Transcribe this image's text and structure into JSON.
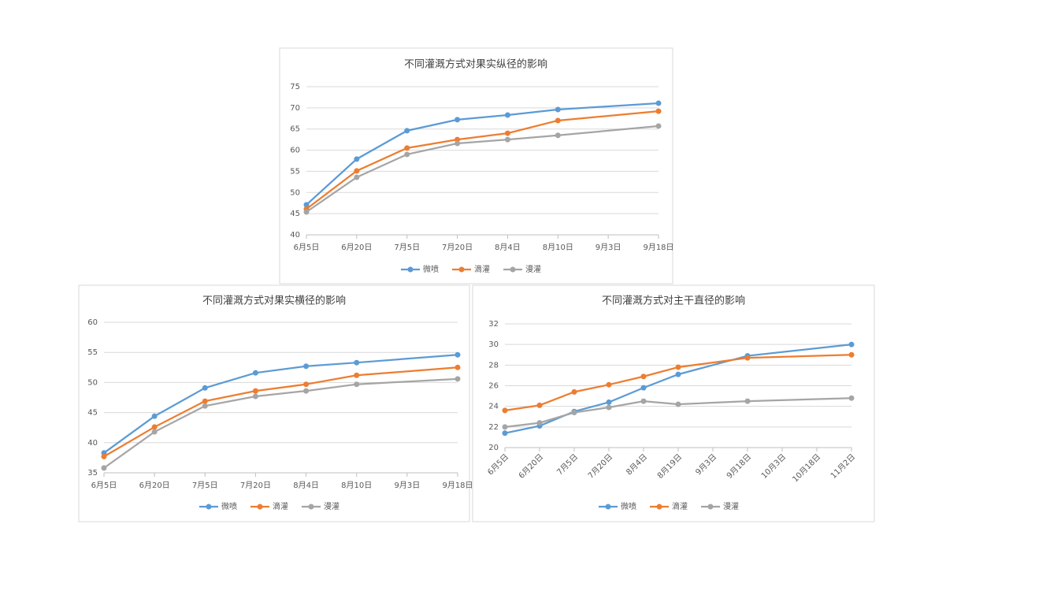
{
  "chart_data": [
    {
      "type": "line",
      "title": "不同灌溉方式对果实纵径的影响",
      "categories": [
        "6月5日",
        "6月20日",
        "7月5日",
        "7月20日",
        "8月4日",
        "8月10日",
        "9月3日",
        "9月18日"
      ],
      "series": [
        {
          "name": "微喷",
          "color": "#5b9bd5",
          "values": [
            47.1,
            57.9,
            64.6,
            67.2,
            68.3,
            69.6,
            null,
            71.1
          ]
        },
        {
          "name": "滴灌",
          "color": "#ed7d31",
          "values": [
            46.1,
            55.1,
            60.5,
            62.5,
            64,
            67,
            null,
            69.2
          ]
        },
        {
          "name": "漫灌",
          "color": "#a5a5a5",
          "values": [
            45.4,
            53.6,
            59,
            61.6,
            62.5,
            63.5,
            null,
            65.7
          ]
        }
      ],
      "ylim": [
        40,
        75
      ],
      "yticks": [
        40,
        45,
        50,
        55,
        60,
        65,
        70,
        75
      ],
      "grid": true,
      "legend": "bottom",
      "connect_gaps": true
    },
    {
      "type": "line",
      "title": "不同灌溉方式对果实横径的影响",
      "categories": [
        "6月5日",
        "6月20日",
        "7月5日",
        "7月20日",
        "8月4日",
        "8月10日",
        "9月3日",
        "9月18日"
      ],
      "series": [
        {
          "name": "微喷",
          "color": "#5b9bd5",
          "values": [
            38.3,
            44.4,
            49.1,
            51.6,
            52.7,
            53.3,
            null,
            54.6
          ]
        },
        {
          "name": "滴灌",
          "color": "#ed7d31",
          "values": [
            37.7,
            42.6,
            46.9,
            48.6,
            49.7,
            51.2,
            null,
            52.5
          ]
        },
        {
          "name": "漫灌",
          "color": "#a5a5a5",
          "values": [
            35.8,
            41.8,
            46.1,
            47.7,
            48.6,
            49.7,
            null,
            50.6
          ]
        }
      ],
      "ylim": [
        35,
        60
      ],
      "yticks": [
        35,
        40,
        45,
        50,
        55,
        60
      ],
      "grid": true,
      "legend": "bottom",
      "connect_gaps": true
    },
    {
      "type": "line",
      "title": "不同灌溉方式对主干直径的影响",
      "categories": [
        "6月5日",
        "6月20日",
        "7月5日",
        "7月20日",
        "8月4日",
        "8月19日",
        "9月3日",
        "9月18日",
        "10月3日",
        "10月18日",
        "11月2日"
      ],
      "series": [
        {
          "name": "微喷",
          "color": "#5b9bd5",
          "values": [
            21.4,
            22.1,
            23.5,
            24.4,
            25.8,
            27.1,
            null,
            28.9,
            null,
            null,
            30.0
          ]
        },
        {
          "name": "滴灌",
          "color": "#ed7d31",
          "values": [
            23.6,
            24.1,
            25.4,
            26.1,
            26.9,
            27.8,
            null,
            28.7,
            null,
            null,
            29.0
          ]
        },
        {
          "name": "漫灌",
          "color": "#a5a5a5",
          "values": [
            22.0,
            22.4,
            23.4,
            23.9,
            24.5,
            24.2,
            null,
            24.5,
            null,
            null,
            24.8
          ]
        }
      ],
      "ylim": [
        20,
        32
      ],
      "yticks": [
        20,
        22,
        24,
        26,
        28,
        30,
        32
      ],
      "grid": true,
      "legend": "bottom",
      "connect_gaps": true,
      "rotate_x_labels": true
    }
  ]
}
